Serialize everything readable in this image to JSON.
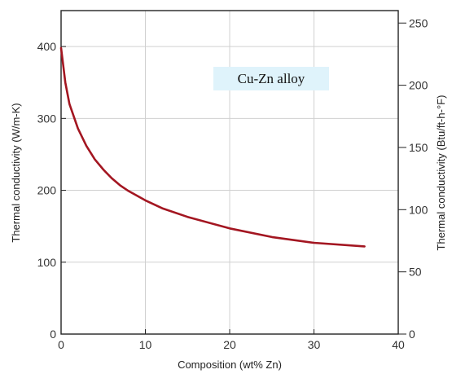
{
  "chart_data": {
    "type": "line",
    "xlabel": "Composition (wt% Zn)",
    "ylabel": "Thermal conductivity (W/m-K)",
    "y2label": "Thermal conductivity (Btu/ft-h-°F)",
    "xlim": [
      0,
      40
    ],
    "ylim": [
      0,
      450
    ],
    "y2lim": [
      0,
      260
    ],
    "x_ticks": [
      "0",
      "10",
      "20",
      "30",
      "40"
    ],
    "y_ticks": [
      "0",
      "100",
      "200",
      "300",
      "400"
    ],
    "y2_ticks": [
      "0",
      "50",
      "100",
      "150",
      "200",
      "250"
    ],
    "grid": true,
    "annotation": "Cu-Zn alloy",
    "series": [
      {
        "color": "#a31621",
        "x": [
          0,
          0.5,
          1,
          2,
          3,
          4,
          5,
          6,
          7,
          8,
          10,
          12,
          15,
          20,
          25,
          30,
          36
        ],
        "y": [
          398,
          350,
          320,
          286,
          262,
          243,
          229,
          217,
          207,
          199,
          186,
          175,
          163,
          147,
          135,
          127,
          122
        ]
      }
    ]
  }
}
